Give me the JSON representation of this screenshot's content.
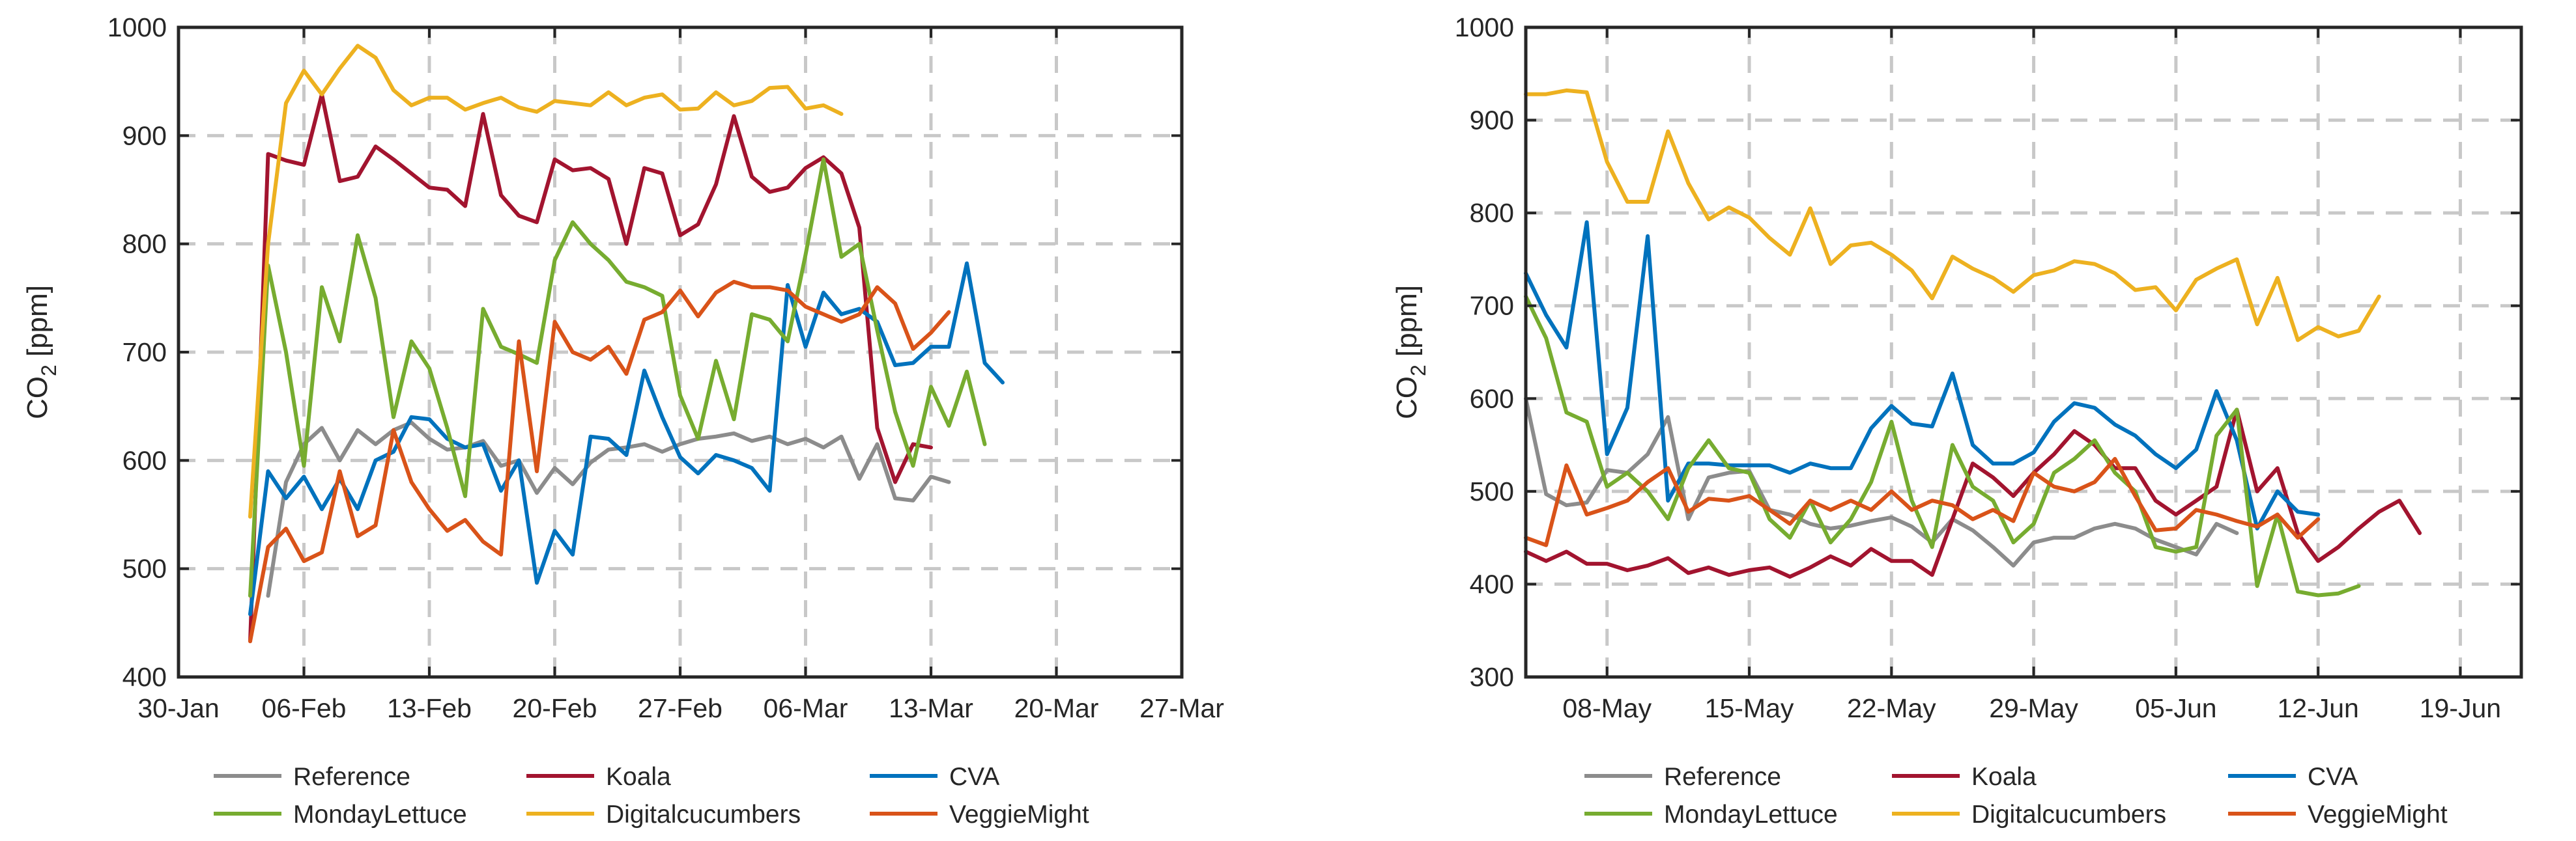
{
  "chart_data": [
    {
      "type": "line",
      "ylabel": "CO",
      "ylabel_sub": "2",
      "ylabel_unit": " [ppm]",
      "ylim": [
        400,
        1000
      ],
      "yticks": [
        400,
        500,
        600,
        700,
        800,
        900,
        1000
      ],
      "xlim": [
        0,
        56
      ],
      "xticks": [
        0,
        7,
        14,
        21,
        28,
        35,
        42,
        49,
        56
      ],
      "xticklabels": [
        "30-Jan",
        "06-Feb",
        "13-Feb",
        "20-Feb",
        "27-Feb",
        "06-Mar",
        "13-Mar",
        "20-Mar",
        "27-Mar"
      ],
      "grid": true,
      "legend_position": "bottom",
      "series": [
        {
          "name": "Reference",
          "color": "#8c8c8c",
          "x": [
            5,
            6,
            7,
            8,
            9,
            10,
            11,
            12,
            13,
            14,
            15,
            16,
            17,
            18,
            19,
            20,
            21,
            22,
            23,
            24,
            25,
            26,
            27,
            28,
            29,
            30,
            31,
            32,
            33,
            34,
            35,
            36,
            37,
            38,
            39,
            40,
            41,
            42,
            43
          ],
          "y": [
            475,
            580,
            615,
            630,
            600,
            628,
            615,
            628,
            635,
            620,
            610,
            612,
            618,
            595,
            600,
            570,
            593,
            578,
            598,
            610,
            612,
            615,
            608,
            615,
            620,
            622,
            625,
            618,
            622,
            615,
            620,
            612,
            622,
            583,
            615,
            565,
            563,
            585,
            580
          ]
        },
        {
          "name": "Koala",
          "color": "#a2142f",
          "x": [
            4,
            5,
            6,
            7,
            8,
            9,
            10,
            11,
            12,
            13,
            14,
            15,
            16,
            17,
            18,
            19,
            20,
            21,
            22,
            23,
            24,
            25,
            26,
            27,
            28,
            29,
            30,
            31,
            32,
            33,
            34,
            35,
            36,
            37,
            38,
            39,
            40,
            41,
            42
          ],
          "y": [
            433,
            883,
            877,
            873,
            938,
            858,
            862,
            890,
            878,
            865,
            852,
            850,
            835,
            920,
            845,
            826,
            820,
            878,
            868,
            870,
            860,
            800,
            870,
            865,
            808,
            818,
            855,
            918,
            862,
            848,
            852,
            870,
            880,
            865,
            815,
            630,
            580,
            615,
            612
          ]
        },
        {
          "name": "CVA",
          "color": "#0072bd",
          "x": [
            4,
            5,
            6,
            7,
            8,
            9,
            10,
            11,
            12,
            13,
            14,
            15,
            16,
            17,
            18,
            19,
            20,
            21,
            22,
            23,
            24,
            25,
            26,
            27,
            28,
            29,
            30,
            31,
            32,
            33,
            34,
            35,
            36,
            37,
            38,
            39,
            40,
            41,
            42,
            43,
            44,
            45,
            46
          ],
          "y": [
            458,
            590,
            565,
            585,
            555,
            583,
            555,
            600,
            608,
            640,
            638,
            620,
            612,
            615,
            572,
            600,
            487,
            535,
            513,
            622,
            620,
            605,
            683,
            640,
            603,
            588,
            605,
            600,
            593,
            572,
            762,
            705,
            755,
            735,
            740,
            728,
            688,
            690,
            705,
            705,
            782,
            690,
            672
          ]
        },
        {
          "name": "MondayLettuce",
          "color": "#77ac30",
          "x": [
            4,
            5,
            6,
            7,
            8,
            9,
            10,
            11,
            12,
            13,
            14,
            15,
            16,
            17,
            18,
            19,
            20,
            21,
            22,
            23,
            24,
            25,
            26,
            27,
            28,
            29,
            30,
            31,
            32,
            33,
            34,
            35,
            36,
            37,
            38,
            39,
            40,
            41,
            42,
            43,
            44,
            45
          ],
          "y": [
            475,
            780,
            700,
            595,
            760,
            710,
            808,
            750,
            640,
            710,
            685,
            630,
            567,
            740,
            705,
            698,
            690,
            785,
            820,
            800,
            785,
            765,
            760,
            752,
            660,
            620,
            692,
            638,
            735,
            730,
            710,
            790,
            878,
            788,
            800,
            720,
            645,
            595,
            668,
            632,
            682,
            615
          ]
        },
        {
          "name": "Digitalcucumbers",
          "color": "#edb120",
          "x": [
            4,
            5,
            6,
            7,
            8,
            9,
            10,
            11,
            12,
            13,
            14,
            15,
            16,
            17,
            18,
            19,
            20,
            21,
            22,
            23,
            24,
            25,
            26,
            27,
            28,
            29,
            30,
            31,
            32,
            33,
            34,
            35,
            36,
            37
          ],
          "y": [
            548,
            800,
            930,
            960,
            938,
            962,
            983,
            972,
            942,
            928,
            935,
            935,
            924,
            930,
            935,
            926,
            922,
            932,
            930,
            928,
            940,
            928,
            935,
            938,
            924,
            925,
            940,
            928,
            932,
            944,
            945,
            925,
            928,
            920
          ]
        },
        {
          "name": "VeggieMight",
          "color": "#d95319",
          "x": [
            4,
            5,
            6,
            7,
            8,
            9,
            10,
            11,
            12,
            13,
            14,
            15,
            16,
            17,
            18,
            19,
            20,
            21,
            22,
            23,
            24,
            25,
            26,
            27,
            28,
            29,
            30,
            31,
            32,
            33,
            34,
            35,
            36,
            37,
            38,
            39,
            40,
            41,
            42,
            43
          ],
          "y": [
            433,
            520,
            537,
            507,
            515,
            590,
            530,
            540,
            628,
            580,
            555,
            535,
            545,
            525,
            513,
            710,
            590,
            728,
            700,
            693,
            705,
            680,
            730,
            737,
            757,
            733,
            755,
            765,
            760,
            760,
            757,
            742,
            735,
            728,
            735,
            760,
            745,
            703,
            718,
            737
          ]
        }
      ]
    },
    {
      "type": "line",
      "ylabel": "CO",
      "ylabel_sub": "2",
      "ylabel_unit": " [ppm]",
      "ylim": [
        300,
        1000
      ],
      "yticks": [
        300,
        400,
        500,
        600,
        700,
        800,
        900,
        1000
      ],
      "xlim": [
        0,
        49
      ],
      "xticks": [
        4,
        11,
        18,
        25,
        32,
        39,
        46
      ],
      "xticklabels": [
        "08-May",
        "15-May",
        "22-May",
        "29-May",
        "05-Jun",
        "12-Jun",
        "19-Jun"
      ],
      "grid": true,
      "legend_position": "bottom",
      "series": [
        {
          "name": "Reference",
          "color": "#8c8c8c",
          "x": [
            0,
            1,
            2,
            3,
            4,
            5,
            6,
            7,
            8,
            9,
            10,
            11,
            12,
            13,
            14,
            15,
            16,
            17,
            18,
            19,
            20,
            21,
            22,
            23,
            24,
            25,
            26,
            27,
            28,
            29,
            30,
            31,
            32,
            33,
            34,
            35
          ],
          "y": [
            600,
            497,
            485,
            488,
            523,
            520,
            540,
            580,
            470,
            515,
            520,
            522,
            480,
            475,
            465,
            460,
            463,
            468,
            472,
            462,
            445,
            470,
            458,
            440,
            420,
            445,
            450,
            450,
            460,
            465,
            460,
            448,
            440,
            432,
            465,
            455
          ]
        },
        {
          "name": "Koala",
          "color": "#a2142f",
          "x": [
            0,
            1,
            2,
            3,
            4,
            5,
            6,
            7,
            8,
            9,
            10,
            11,
            12,
            13,
            14,
            15,
            16,
            17,
            18,
            19,
            20,
            21,
            22,
            23,
            24,
            25,
            26,
            27,
            28,
            29,
            30,
            31,
            32,
            33,
            34,
            35,
            36,
            37,
            38,
            39,
            40,
            41,
            42,
            43,
            44
          ],
          "y": [
            435,
            425,
            435,
            422,
            422,
            415,
            420,
            428,
            412,
            418,
            410,
            415,
            418,
            408,
            418,
            430,
            420,
            438,
            425,
            425,
            410,
            470,
            530,
            515,
            495,
            520,
            540,
            565,
            550,
            525,
            525,
            490,
            475,
            490,
            505,
            588,
            500,
            525,
            455,
            425,
            440,
            460,
            478,
            490,
            455
          ]
        },
        {
          "name": "CVA",
          "color": "#0072bd",
          "x": [
            0,
            1,
            2,
            3,
            4,
            5,
            6,
            7,
            8,
            9,
            10,
            11,
            12,
            13,
            14,
            15,
            16,
            17,
            18,
            19,
            20,
            21,
            22,
            23,
            24,
            25,
            26,
            27,
            28,
            29,
            30,
            31,
            32,
            33,
            34,
            35,
            36,
            37,
            38,
            39
          ],
          "y": [
            735,
            690,
            655,
            790,
            540,
            590,
            775,
            490,
            530,
            530,
            528,
            528,
            528,
            520,
            530,
            525,
            525,
            568,
            592,
            573,
            570,
            627,
            550,
            530,
            530,
            542,
            575,
            595,
            590,
            572,
            560,
            540,
            525,
            545,
            608,
            555,
            460,
            500,
            478,
            475
          ]
        },
        {
          "name": "MondayLettuce",
          "color": "#77ac30",
          "x": [
            0,
            1,
            2,
            3,
            4,
            5,
            6,
            7,
            8,
            9,
            10,
            11,
            12,
            13,
            14,
            15,
            16,
            17,
            18,
            19,
            20,
            21,
            22,
            23,
            24,
            25,
            26,
            27,
            28,
            29,
            30,
            31,
            32,
            33,
            34,
            35,
            36,
            37,
            38,
            39,
            40,
            41
          ],
          "y": [
            710,
            665,
            585,
            575,
            505,
            520,
            500,
            470,
            525,
            555,
            525,
            520,
            470,
            450,
            490,
            445,
            470,
            510,
            575,
            490,
            440,
            550,
            505,
            490,
            445,
            465,
            520,
            535,
            555,
            520,
            500,
            440,
            435,
            440,
            560,
            588,
            398,
            475,
            392,
            388,
            390,
            398
          ]
        },
        {
          "name": "Digitalcucumbers",
          "color": "#edb120",
          "x": [
            0,
            1,
            2,
            3,
            4,
            5,
            6,
            7,
            8,
            9,
            10,
            11,
            12,
            13,
            14,
            15,
            16,
            17,
            18,
            19,
            20,
            21,
            22,
            23,
            24,
            25,
            26,
            27,
            28,
            29,
            30,
            31,
            32,
            33,
            34,
            35,
            36,
            37,
            38,
            39,
            40,
            41,
            42
          ],
          "y": [
            928,
            928,
            932,
            930,
            855,
            812,
            812,
            888,
            832,
            793,
            806,
            795,
            773,
            755,
            805,
            745,
            765,
            768,
            755,
            738,
            708,
            753,
            740,
            730,
            715,
            733,
            738,
            748,
            745,
            735,
            717,
            720,
            695,
            728,
            740,
            750,
            680,
            730,
            663,
            677,
            667,
            673,
            710
          ]
        },
        {
          "name": "VeggieMight",
          "color": "#d95319",
          "x": [
            0,
            1,
            2,
            3,
            4,
            5,
            6,
            7,
            8,
            9,
            10,
            11,
            12,
            13,
            14,
            15,
            16,
            17,
            18,
            19,
            20,
            21,
            22,
            23,
            24,
            25,
            26,
            27,
            28,
            29,
            30,
            31,
            32,
            33,
            34,
            35,
            36,
            37,
            38,
            39
          ],
          "y": [
            450,
            442,
            528,
            475,
            482,
            490,
            510,
            525,
            478,
            492,
            490,
            495,
            480,
            465,
            490,
            480,
            490,
            480,
            500,
            480,
            490,
            485,
            470,
            480,
            468,
            520,
            505,
            500,
            510,
            535,
            495,
            458,
            460,
            480,
            475,
            468,
            462,
            475,
            450,
            470
          ]
        }
      ]
    }
  ]
}
